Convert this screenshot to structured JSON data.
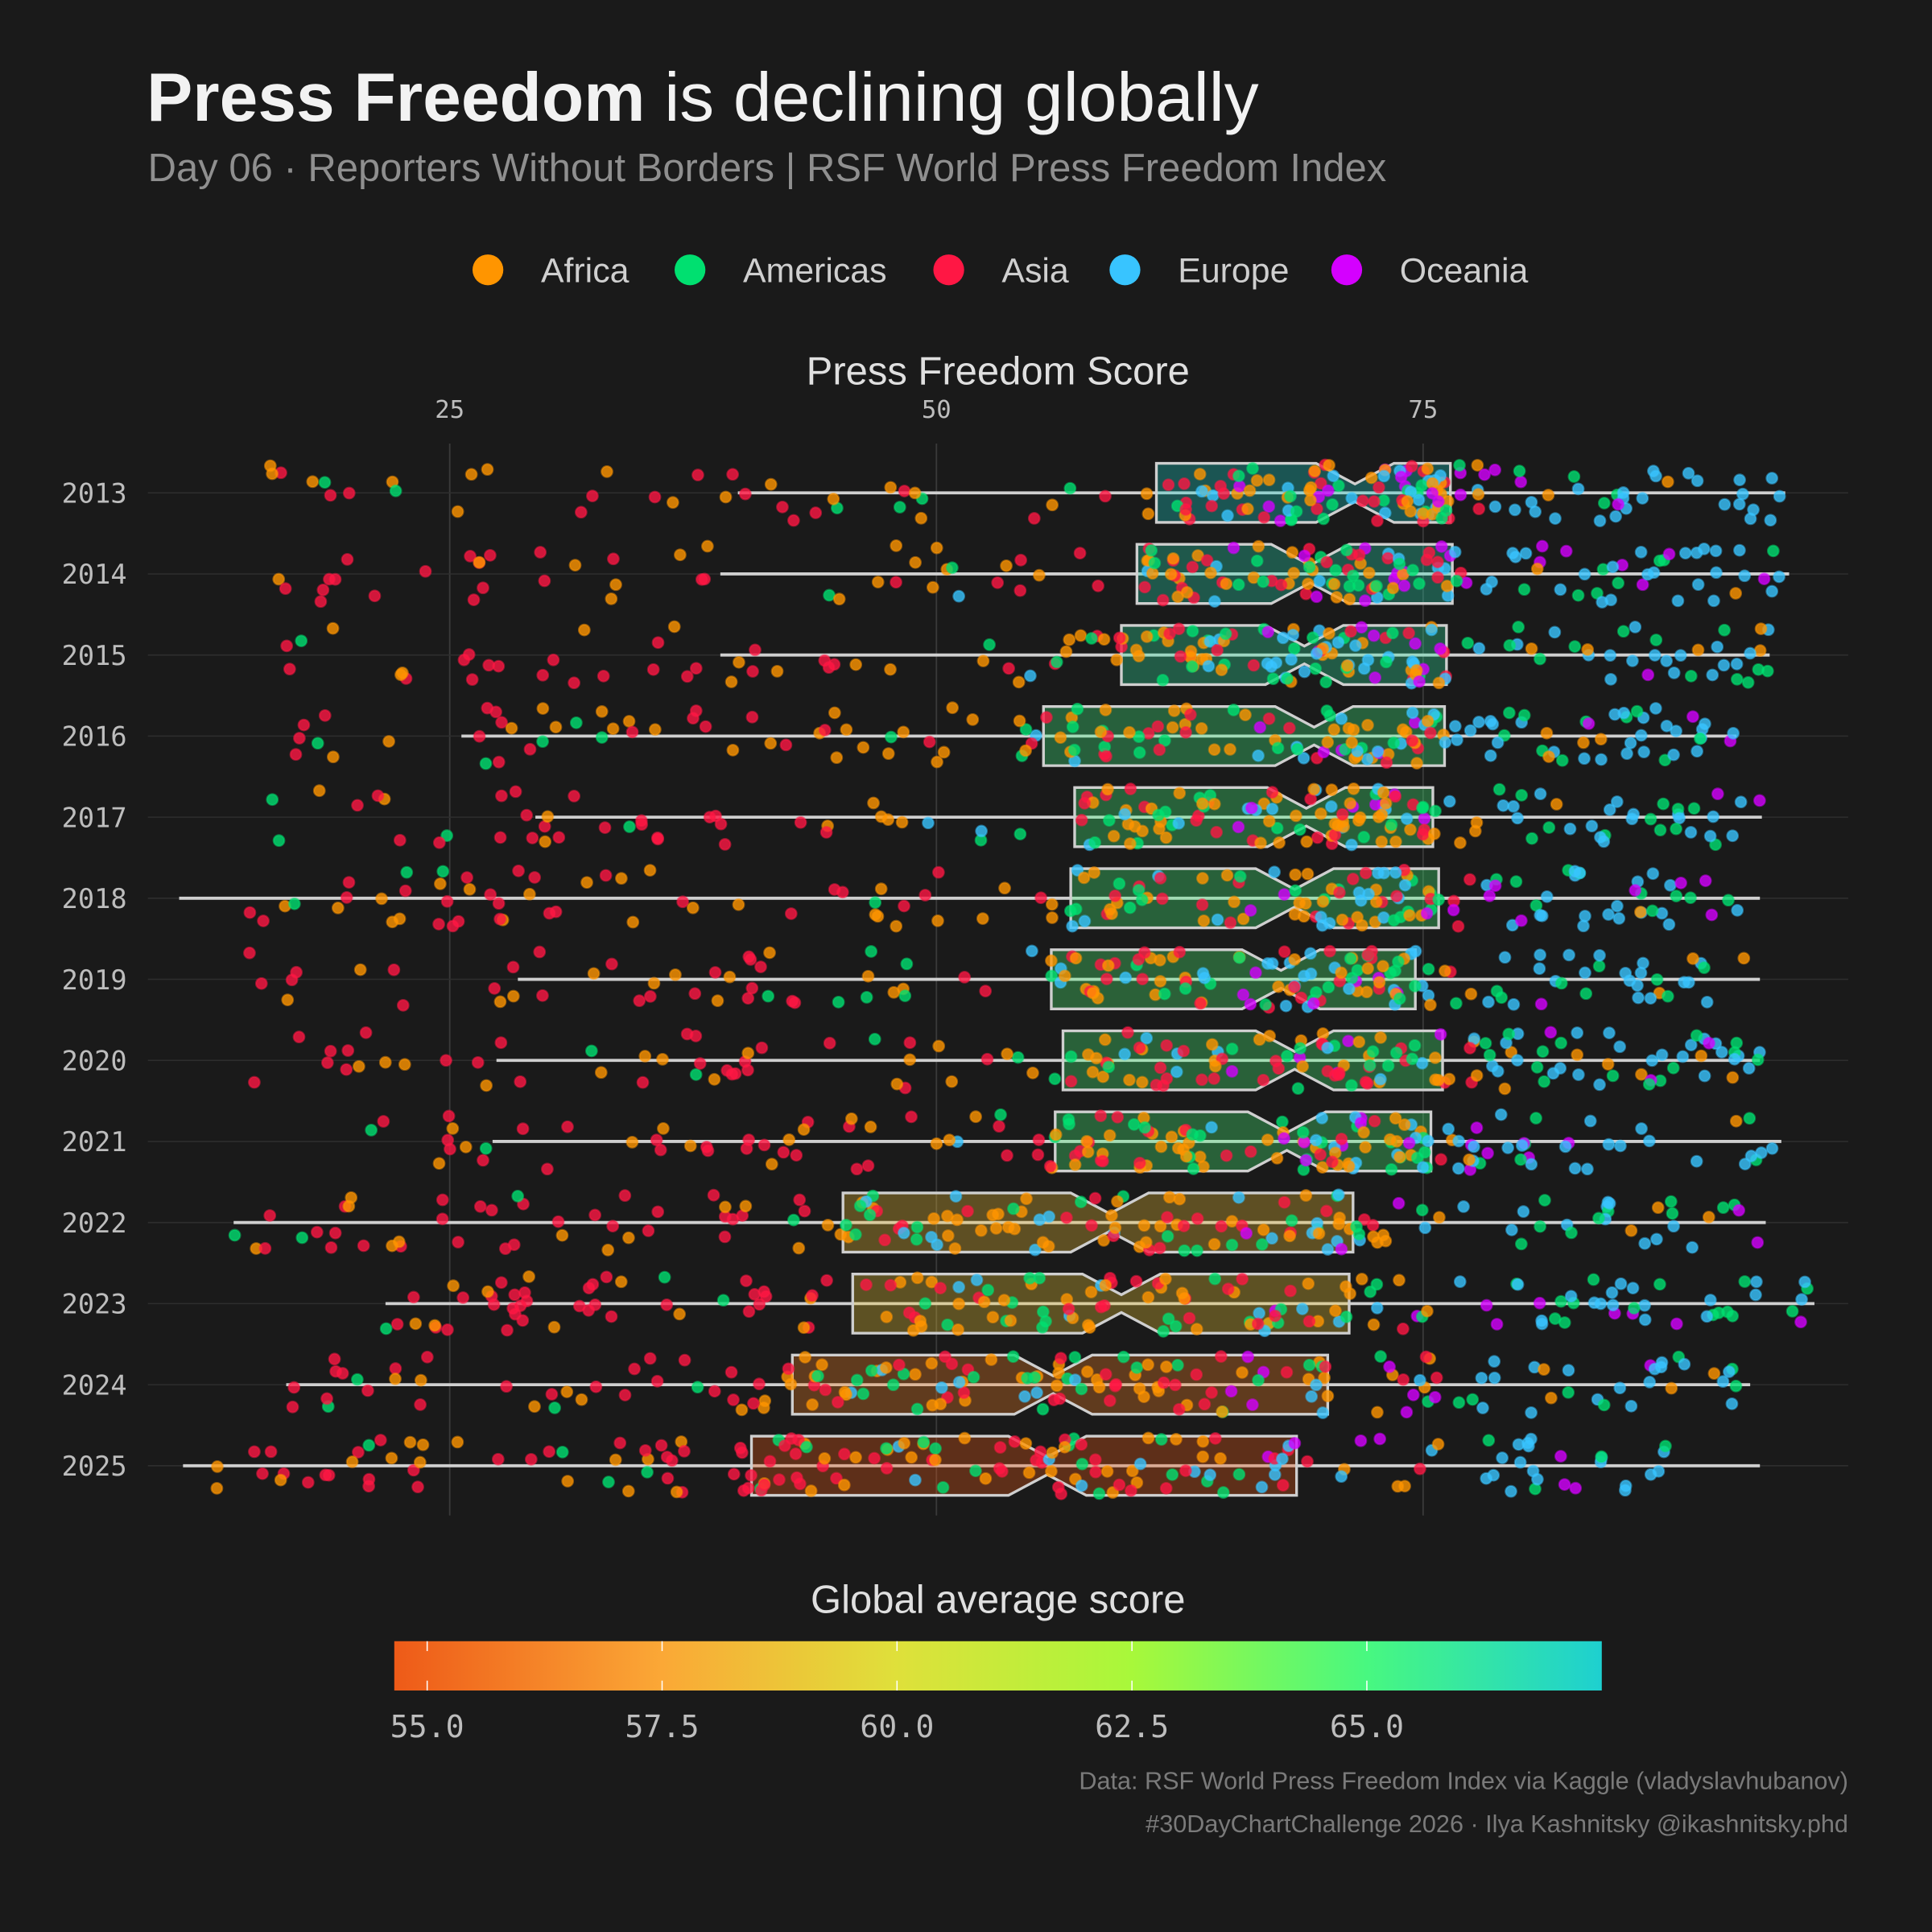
{
  "header": {
    "title_bold": "Press Freedom",
    "title_rest": " is declining globally",
    "subtitle": "Day 06 · Reporters Without Borders | RSF World Press Freedom Index"
  },
  "legend": {
    "items": [
      {
        "label": "Africa",
        "color": "#ff9500"
      },
      {
        "label": "Americas",
        "color": "#00e070"
      },
      {
        "label": "Asia",
        "color": "#ff1744"
      },
      {
        "label": "Europe",
        "color": "#38c4ff"
      },
      {
        "label": "Oceania",
        "color": "#d400ff"
      }
    ]
  },
  "chart_data": {
    "type": "boxplot-jitter",
    "xlabel": "Press Freedom Score",
    "x_ticks": [
      "25",
      "50",
      "75"
    ],
    "x_tick_values": [
      25,
      50,
      75
    ],
    "xlim": [
      11,
      96
    ],
    "x_axis_position": "top",
    "grid": true,
    "notched": true,
    "categories": [
      "2013",
      "2014",
      "2015",
      "2016",
      "2017",
      "2018",
      "2019",
      "2020",
      "2021",
      "2022",
      "2023",
      "2024",
      "2025"
    ],
    "boxes": [
      {
        "year": "2013",
        "min": 15.1,
        "whisker_low": 39.8,
        "q1": 61.3,
        "median": 71.5,
        "q3": 76.4,
        "whisker_high": 93.6,
        "max": 93.6,
        "global_avg": 67.4
      },
      {
        "year": "2014",
        "min": 15.1,
        "whisker_low": 38.9,
        "q1": 60.3,
        "median": 69.2,
        "q3": 76.5,
        "whisker_high": 93.8,
        "max": 93.8,
        "global_avg": 66.6
      },
      {
        "year": "2015",
        "min": 15.1,
        "whisker_low": 38.9,
        "q1": 59.5,
        "median": 68.9,
        "q3": 76.2,
        "whisker_high": 92.8,
        "max": 92.8,
        "global_avg": 66.2
      },
      {
        "year": "2016",
        "min": 16.0,
        "whisker_low": 25.6,
        "q1": 55.5,
        "median": 69.4,
        "q3": 76.1,
        "whisker_high": 91.1,
        "max": 91.1,
        "global_avg": 65.2
      },
      {
        "year": "2017",
        "min": 15.0,
        "whisker_low": 29.4,
        "q1": 57.1,
        "median": 69.0,
        "q3": 75.5,
        "whisker_high": 92.4,
        "max": 92.4,
        "global_avg": 65.0
      },
      {
        "year": "2018",
        "min": 11.1,
        "whisker_low": 11.1,
        "q1": 56.9,
        "median": 68.4,
        "q3": 75.8,
        "whisker_high": 92.3,
        "max": 92.3,
        "global_avg": 65.0
      },
      {
        "year": "2019",
        "min": 14.5,
        "whisker_low": 28.5,
        "q1": 55.9,
        "median": 67.7,
        "q3": 74.6,
        "whisker_high": 92.3,
        "max": 92.3,
        "global_avg": 64.8
      },
      {
        "year": "2020",
        "min": 14.0,
        "whisker_low": 27.4,
        "q1": 56.5,
        "median": 68.4,
        "q3": 76.0,
        "whisker_high": 92.3,
        "max": 92.3,
        "global_avg": 64.9
      },
      {
        "year": "2021",
        "min": 18.6,
        "whisker_low": 27.2,
        "q1": 56.1,
        "median": 68.0,
        "q3": 75.4,
        "whisker_high": 93.4,
        "max": 93.4,
        "global_avg": 64.9
      },
      {
        "year": "2022",
        "min": 13.9,
        "whisker_low": 13.9,
        "q1": 45.2,
        "median": 58.9,
        "q3": 71.4,
        "whisker_high": 92.6,
        "max": 92.6,
        "global_avg": 58.6
      },
      {
        "year": "2023",
        "min": 21.7,
        "whisker_low": 21.7,
        "q1": 45.7,
        "median": 59.5,
        "q3": 71.2,
        "whisker_high": 95.1,
        "max": 95.1,
        "global_avg": 58.9
      },
      {
        "year": "2024",
        "min": 16.6,
        "whisker_low": 16.6,
        "q1": 42.6,
        "median": 56.0,
        "q3": 70.1,
        "whisker_high": 91.8,
        "max": 91.8,
        "global_avg": 56.2
      },
      {
        "year": "2025",
        "min": 11.3,
        "whisker_low": 11.3,
        "q1": 40.5,
        "median": 55.7,
        "q3": 68.5,
        "whisker_high": 92.3,
        "max": 92.3,
        "global_avg": 54.8
      }
    ],
    "colorbar": {
      "title": "Global average score",
      "range": [
        54.65,
        67.5
      ],
      "ticks": [
        "55.0",
        "57.5",
        "60.0",
        "62.5",
        "65.0"
      ],
      "tick_values": [
        55,
        57.5,
        60,
        62.5,
        65
      ],
      "stops": [
        {
          "value": 54.65,
          "color": "#ee5a18"
        },
        {
          "value": 57.5,
          "color": "#fba836"
        },
        {
          "value": 60.0,
          "color": "#dfe03a"
        },
        {
          "value": 62.5,
          "color": "#a8f83a"
        },
        {
          "value": 65.0,
          "color": "#48f880"
        },
        {
          "value": 67.5,
          "color": "#1ed0d0"
        }
      ]
    }
  },
  "footer": {
    "source": "Data: RSF World Press Freedom Index via Kaggle (vladyslavhubanov)",
    "credit": "#30DayChartChallenge 2026 · Ilya Kashnitsky @ikashnitsky.phd"
  }
}
